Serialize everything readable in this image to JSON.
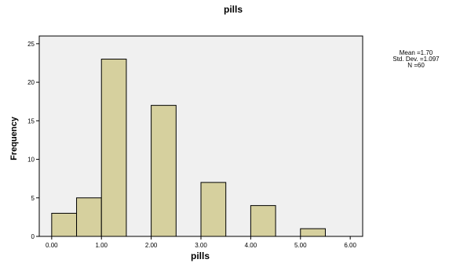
{
  "chart_data": {
    "type": "bar",
    "title": "pills",
    "xlabel": "pills",
    "ylabel": "Frequency",
    "bin_width": 0.5,
    "bins": [
      {
        "start": 0.0,
        "end": 0.5,
        "count": 3
      },
      {
        "start": 0.5,
        "end": 1.0,
        "count": 5
      },
      {
        "start": 1.0,
        "end": 1.5,
        "count": 23
      },
      {
        "start": 2.0,
        "end": 2.5,
        "count": 17
      },
      {
        "start": 3.0,
        "end": 3.5,
        "count": 7
      },
      {
        "start": 4.0,
        "end": 4.5,
        "count": 4
      },
      {
        "start": 5.0,
        "end": 5.5,
        "count": 1
      }
    ],
    "xlim": [
      -0.25,
      6.25
    ],
    "ylim": [
      0,
      26
    ],
    "x_ticks": [
      {
        "value": 0,
        "label": "0.00"
      },
      {
        "value": 1,
        "label": "1.00"
      },
      {
        "value": 2,
        "label": "2.00"
      },
      {
        "value": 3,
        "label": "3.00"
      },
      {
        "value": 4,
        "label": "4.00"
      },
      {
        "value": 5,
        "label": "5.00"
      },
      {
        "value": 6,
        "label": "6.00"
      }
    ],
    "y_ticks": [
      {
        "value": 0,
        "label": "0"
      },
      {
        "value": 5,
        "label": "5"
      },
      {
        "value": 10,
        "label": "10"
      },
      {
        "value": 15,
        "label": "15"
      },
      {
        "value": 20,
        "label": "20"
      },
      {
        "value": 25,
        "label": "25"
      }
    ],
    "grid": false,
    "stats": [
      "Mean =1.70",
      "Std. Dev. =1.097",
      "N =60"
    ],
    "colors": {
      "bar_fill": "#d6d09e",
      "bar_stroke": "#000000",
      "plot_bg": "#f0f0f0",
      "axis": "#000000"
    }
  }
}
